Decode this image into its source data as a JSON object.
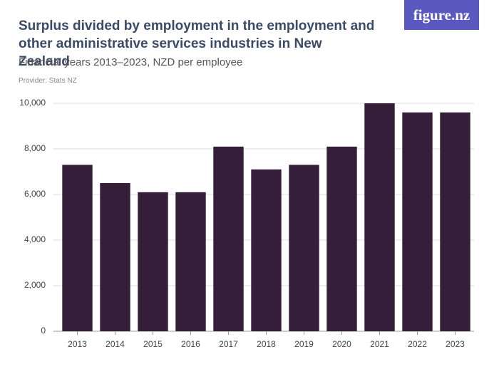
{
  "chart_data": {
    "type": "bar",
    "title": "Surplus divided by employment in the employment and other administrative services industries in New Zealand",
    "subtitle": "Financial years 2013–2023, NZD per employee",
    "provider": "Provider: Stats NZ",
    "logo": "figure.nz",
    "categories": [
      "2013",
      "2014",
      "2015",
      "2016",
      "2017",
      "2018",
      "2019",
      "2020",
      "2021",
      "2022",
      "2023"
    ],
    "values": [
      7300,
      6500,
      6100,
      6100,
      8100,
      7100,
      7300,
      8100,
      10000,
      9600,
      9600
    ],
    "color": "#341e3a",
    "ylim": [
      0,
      10000
    ],
    "yticks": [
      0,
      {
        "value": 2000,
        "label": "2,000"
      },
      {
        "value": 4000,
        "label": "4,000"
      },
      {
        "value": 6000,
        "label": "6,000"
      },
      {
        "value": 8000,
        "label": "8,000"
      },
      {
        "value": 10000,
        "label": "10,000"
      }
    ],
    "grid": true
  }
}
